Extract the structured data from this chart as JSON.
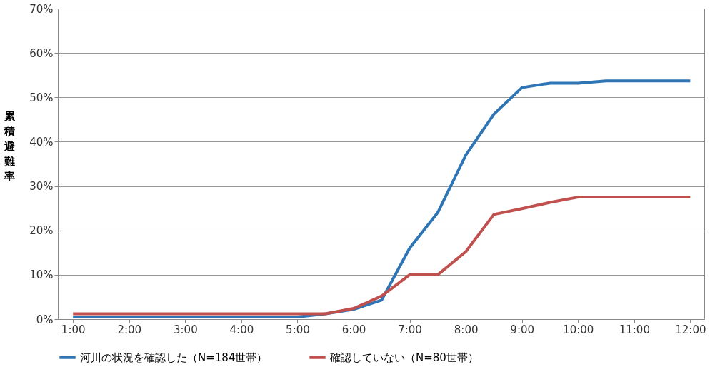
{
  "chart_data": {
    "type": "line",
    "ylabel": "累積避難率",
    "x": [
      1,
      1.5,
      2,
      2.5,
      3,
      3.5,
      4,
      4.5,
      5,
      5.5,
      6,
      6.5,
      7,
      7.5,
      8,
      8.5,
      9,
      9.5,
      10,
      10.5,
      11,
      11.5,
      12
    ],
    "series": [
      {
        "name": "河川の状況を確認した（N=184世帯）",
        "color": "#2e75b6",
        "values": [
          0.5,
          0.5,
          0.5,
          0.5,
          0.5,
          0.5,
          0.5,
          0.5,
          0.5,
          1.2,
          2.2,
          4.3,
          16,
          24,
          37,
          46.2,
          52.2,
          53.2,
          53.2,
          53.7,
          53.7,
          53.7,
          53.7
        ]
      },
      {
        "name": "確認していない（N=80世帯）",
        "color": "#c0504d",
        "values": [
          1.2,
          1.2,
          1.2,
          1.2,
          1.2,
          1.2,
          1.2,
          1.2,
          1.2,
          1.2,
          2.4,
          5.2,
          10,
          10,
          15.2,
          23.6,
          24.9,
          26.3,
          27.5,
          27.5,
          27.5,
          27.5,
          27.5
        ]
      }
    ],
    "xlim": [
      0.73,
      12.25
    ],
    "xticks": [
      {
        "value": 1,
        "label": "1:00"
      },
      {
        "value": 2,
        "label": "2:00"
      },
      {
        "value": 3,
        "label": "3:00"
      },
      {
        "value": 4,
        "label": "4:00"
      },
      {
        "value": 5,
        "label": "5:00"
      },
      {
        "value": 6,
        "label": "6:00"
      },
      {
        "value": 7,
        "label": "7:00"
      },
      {
        "value": 8,
        "label": "8:00"
      },
      {
        "value": 9,
        "label": "9:00"
      },
      {
        "value": 10,
        "label": "10:00"
      },
      {
        "value": 11,
        "label": "11:00"
      },
      {
        "value": 12,
        "label": "12:00"
      }
    ],
    "ylim": [
      0,
      70
    ],
    "yticks": [
      {
        "value": 0,
        "label": "0%"
      },
      {
        "value": 10,
        "label": "10%"
      },
      {
        "value": 20,
        "label": "20%"
      },
      {
        "value": 30,
        "label": "30%"
      },
      {
        "value": 40,
        "label": "40%"
      },
      {
        "value": 50,
        "label": "50%"
      },
      {
        "value": 60,
        "label": "60%"
      },
      {
        "value": 70,
        "label": "70%"
      }
    ],
    "grid": "y",
    "legend": "bottom",
    "marker": "none",
    "line_style": "solid"
  }
}
